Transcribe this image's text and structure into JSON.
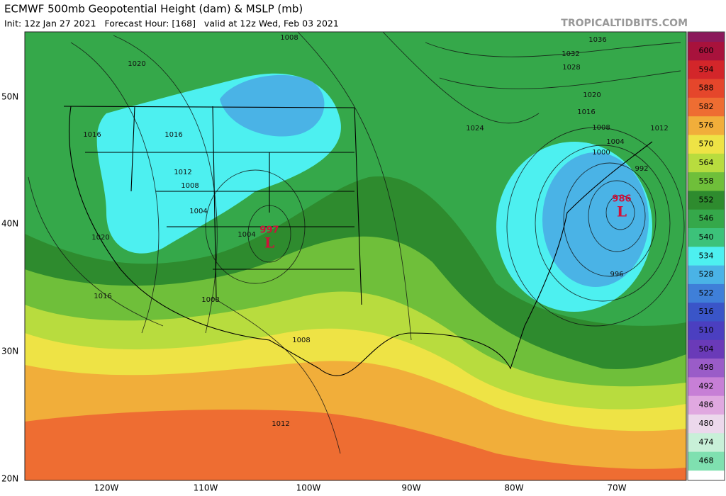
{
  "header": {
    "title": "ECMWF 500mb Geopotential Height (dam) & MSLP (mb)",
    "subtitle": "Init: 12z Jan 27 2021   Forecast Hour: [168]   valid at 12z Wed, Feb 03 2021",
    "brand": "TROPICALTIDBITS.COM"
  },
  "colorbar": [
    {
      "label": "600",
      "color": "#a8123c"
    },
    {
      "label": "594",
      "color": "#d3262a"
    },
    {
      "label": "588",
      "color": "#e5462b"
    },
    {
      "label": "582",
      "color": "#ee6d32"
    },
    {
      "label": "576",
      "color": "#f1ae3a"
    },
    {
      "label": "570",
      "color": "#eee345"
    },
    {
      "label": "564",
      "color": "#b8dc3e"
    },
    {
      "label": "558",
      "color": "#6fbf3a"
    },
    {
      "label": "552",
      "color": "#2e8b2e"
    },
    {
      "label": "546",
      "color": "#35a84a"
    },
    {
      "label": "540",
      "color": "#3cc27a"
    },
    {
      "label": "534",
      "color": "#4df0f0"
    },
    {
      "label": "528",
      "color": "#4ab3e6"
    },
    {
      "label": "522",
      "color": "#3f7fd8"
    },
    {
      "label": "516",
      "color": "#3a55c8"
    },
    {
      "label": "510",
      "color": "#4b3fc0"
    },
    {
      "label": "504",
      "color": "#6a3ab8"
    },
    {
      "label": "498",
      "color": "#9a5cc8"
    },
    {
      "label": "492",
      "color": "#c77fd6"
    },
    {
      "label": "486",
      "color": "#e0a8e0"
    },
    {
      "label": "480",
      "color": "#ecd8ec"
    },
    {
      "label": "474",
      "color": "#c8f0d8"
    },
    {
      "label": "468",
      "color": "#7fe0b0"
    }
  ],
  "latitudes": [
    "50N",
    "40N",
    "30N",
    "20N"
  ],
  "longitudes": [
    "120W",
    "110W",
    "100W",
    "90W",
    "80W",
    "70W"
  ],
  "contour_labels": [
    "1008",
    "1020",
    "1016",
    "1016",
    "1012",
    "1008",
    "1004",
    "1020",
    "1016",
    "1008",
    "1004",
    "1008",
    "1012",
    "1036",
    "1032",
    "1028",
    "1020",
    "1016",
    "1024",
    "1008",
    "1004",
    "1000",
    "992",
    "996",
    "1012"
  ],
  "lows": [
    {
      "pressure": "997",
      "symbol": "L"
    },
    {
      "pressure": "986",
      "symbol": "L"
    }
  ]
}
